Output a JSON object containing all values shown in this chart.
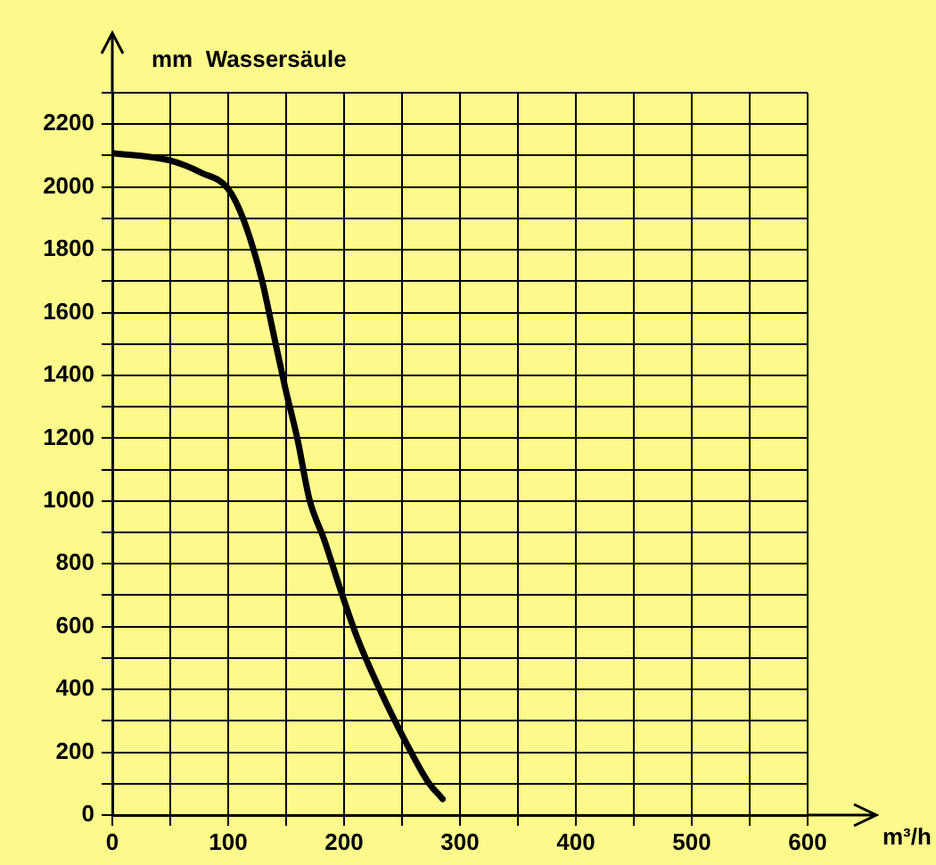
{
  "chart_data": {
    "type": "line",
    "xlabel": "m³/h",
    "ylabel": "mm  Wassersäule",
    "series": [
      {
        "color": "#000000",
        "x": [
          0,
          49,
          77,
          100,
          113,
          129,
          139,
          149,
          160,
          170,
          183,
          198,
          211,
          231,
          254,
          272,
          285
        ],
        "values": [
          2108,
          2085,
          2045,
          1994,
          1898,
          1705,
          1534,
          1364,
          1193,
          1006,
          875,
          705,
          568,
          398,
          227,
          108,
          51
        ]
      }
    ],
    "xlim": [
      0,
      600
    ],
    "ylim": [
      0,
      2300
    ],
    "xticks": [
      0,
      {
        "value": 50,
        "label": null
      },
      100,
      {
        "value": 150,
        "label": null
      },
      200,
      {
        "value": 250,
        "label": null
      },
      300,
      {
        "value": 350,
        "label": null
      },
      400,
      {
        "value": 450,
        "label": null
      },
      500,
      {
        "value": 550,
        "label": null
      },
      600
    ],
    "yticks": [
      0,
      {
        "value": 100,
        "label": null
      },
      200,
      {
        "value": 300,
        "label": null
      },
      400,
      {
        "value": 500,
        "label": null
      },
      600,
      {
        "value": 700,
        "label": null
      },
      800,
      {
        "value": 900,
        "label": null
      },
      1000,
      {
        "value": 1100,
        "label": null
      },
      1200,
      {
        "value": 1300,
        "label": null
      },
      1400,
      {
        "value": 1500,
        "label": null
      },
      1600,
      {
        "value": 1700,
        "label": null
      },
      1800,
      {
        "value": 1900,
        "label": null
      },
      2000,
      {
        "value": 2100,
        "label": null
      },
      2200,
      {
        "value": 2300,
        "label": null
      }
    ],
    "grid": true,
    "legend": false,
    "marker": "none",
    "line_style": "solid"
  }
}
